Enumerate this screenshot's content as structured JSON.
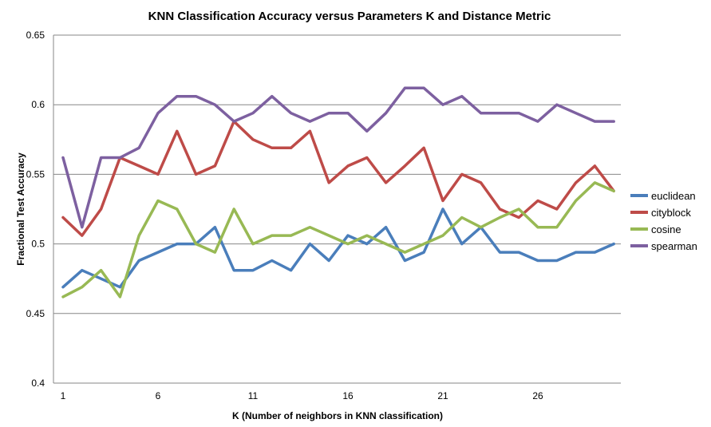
{
  "chart_data": {
    "type": "line",
    "title": "KNN Classification Accuracy versus Parameters K and Distance Metric",
    "xlabel": "K (Number of neighbors in KNN classification)",
    "ylabel": "Fractional Test Accuracy",
    "x": [
      1,
      2,
      3,
      4,
      5,
      6,
      7,
      8,
      9,
      10,
      11,
      12,
      13,
      14,
      15,
      16,
      17,
      18,
      19,
      20,
      21,
      22,
      23,
      24,
      25,
      26,
      27,
      28,
      29,
      30
    ],
    "xticks": [
      "1",
      "6",
      "11",
      "16",
      "21",
      "26"
    ],
    "xtick_values": [
      1,
      6,
      11,
      16,
      21,
      26
    ],
    "xlim": [
      1,
      30
    ],
    "ylim": [
      0.4,
      0.65
    ],
    "yticks": [
      "0.4",
      "0.45",
      "0.5",
      "0.55",
      "0.6",
      "0.65"
    ],
    "ytick_values": [
      0.4,
      0.45,
      0.5,
      0.55,
      0.6,
      0.65
    ],
    "grid": true,
    "legend_position": "right",
    "series": [
      {
        "name": "euclidean",
        "color": "#4a7ebb",
        "values": [
          0.469,
          0.481,
          0.475,
          0.469,
          0.488,
          0.494,
          0.5,
          0.5,
          0.512,
          0.481,
          0.481,
          0.488,
          0.481,
          0.5,
          0.488,
          0.506,
          0.5,
          0.512,
          0.488,
          0.494,
          0.525,
          0.5,
          0.512,
          0.494,
          0.494,
          0.488,
          0.488,
          0.494,
          0.494,
          0.5
        ]
      },
      {
        "name": "cityblock",
        "color": "#be4b48",
        "values": [
          0.519,
          0.506,
          0.525,
          0.562,
          0.556,
          0.55,
          0.581,
          0.55,
          0.556,
          0.588,
          0.575,
          0.569,
          0.569,
          0.581,
          0.544,
          0.556,
          0.562,
          0.544,
          0.556,
          0.569,
          0.531,
          0.55,
          0.544,
          0.525,
          0.519,
          0.531,
          0.525,
          0.544,
          0.556,
          0.538
        ]
      },
      {
        "name": "cosine",
        "color": "#98b954",
        "values": [
          0.462,
          0.469,
          0.481,
          0.462,
          0.506,
          0.531,
          0.525,
          0.5,
          0.494,
          0.525,
          0.5,
          0.506,
          0.506,
          0.512,
          0.506,
          0.5,
          0.506,
          0.5,
          0.494,
          0.5,
          0.506,
          0.519,
          0.512,
          0.519,
          0.525,
          0.512,
          0.512,
          0.531,
          0.544,
          0.538
        ]
      },
      {
        "name": "spearman",
        "color": "#7d60a0",
        "values": [
          0.562,
          0.512,
          0.562,
          0.562,
          0.569,
          0.594,
          0.606,
          0.606,
          0.6,
          0.588,
          0.594,
          0.606,
          0.594,
          0.588,
          0.594,
          0.594,
          0.581,
          0.594,
          0.612,
          0.612,
          0.6,
          0.606,
          0.594,
          0.594,
          0.594,
          0.588,
          0.6,
          0.594,
          0.588,
          0.588
        ]
      }
    ]
  }
}
